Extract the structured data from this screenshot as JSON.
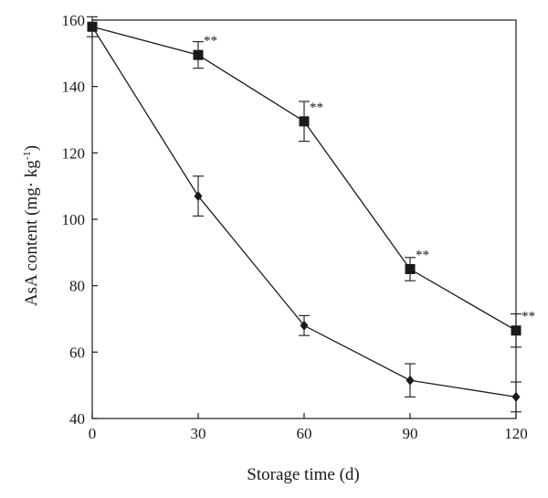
{
  "chart_data": {
    "type": "line",
    "title": "",
    "xlabel": "Storage time (d)",
    "ylabel": "AsA content (mg· kg",
    "ylabel_superscript": "-1",
    "ylabel_close": ")",
    "x": [
      0,
      30,
      60,
      90,
      120
    ],
    "xlim": [
      0,
      120
    ],
    "ylim": [
      40,
      160
    ],
    "xticks": [
      0,
      30,
      60,
      90,
      120
    ],
    "yticks": [
      40,
      60,
      80,
      100,
      120,
      140,
      160
    ],
    "grid": false,
    "legend": "none",
    "series": [
      {
        "marker": "square",
        "values": [
          158,
          149.5,
          129.5,
          85,
          66.5
        ],
        "error": [
          3,
          4,
          6,
          3.5,
          5
        ],
        "annotations": [
          "",
          "**",
          "**",
          "**",
          "**"
        ]
      },
      {
        "marker": "diamond",
        "values": [
          158,
          107,
          68,
          51.5,
          46.5
        ],
        "error": [
          0,
          6,
          3,
          5,
          4.5
        ],
        "annotations": [
          "",
          "",
          "",
          "",
          ""
        ]
      }
    ],
    "colors": {
      "line": "#1a1a1a",
      "marker": "#1a1a1a"
    }
  }
}
